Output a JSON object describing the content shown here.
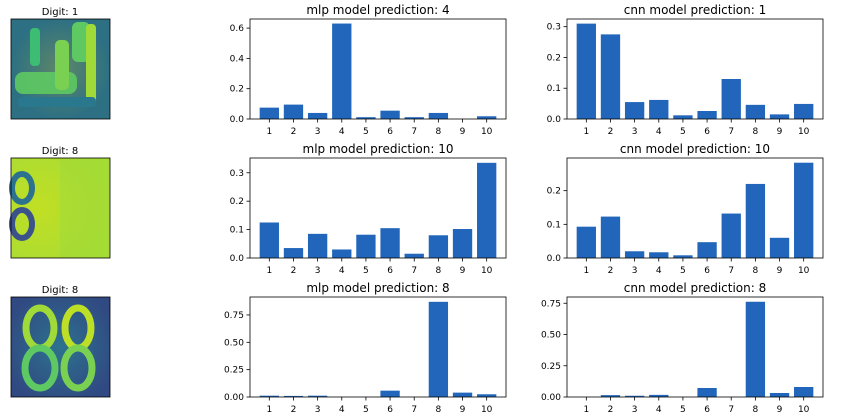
{
  "colors": {
    "bar": "#2266bb",
    "axis": "#000000",
    "background": "#ffffff"
  },
  "digits": [
    {
      "title": "Digit: 1",
      "icon": "digit-1-thumbnail"
    },
    {
      "title": "Digit: 8",
      "icon": "digit-8-thumbnail"
    },
    {
      "title": "Digit: 8",
      "icon": "digit-8-thumbnail"
    }
  ],
  "chart_data": [
    {
      "type": "bar",
      "title": "mlp model prediction: 4",
      "categories": [
        "1",
        "2",
        "3",
        "4",
        "5",
        "6",
        "7",
        "8",
        "9",
        "10"
      ],
      "values": [
        0.075,
        0.095,
        0.04,
        0.63,
        0.012,
        0.055,
        0.012,
        0.04,
        0.0,
        0.018
      ],
      "ylim": [
        0,
        0.66
      ],
      "yticks": [
        "0.0",
        "0.2",
        "0.4",
        "0.6"
      ],
      "ytick_values": [
        0,
        0.2,
        0.4,
        0.6
      ]
    },
    {
      "type": "bar",
      "title": "cnn model prediction: 1",
      "categories": [
        "1",
        "2",
        "3",
        "4",
        "5",
        "6",
        "7",
        "8",
        "9",
        "10"
      ],
      "values": [
        0.31,
        0.275,
        0.055,
        0.062,
        0.012,
        0.026,
        0.13,
        0.046,
        0.015,
        0.049
      ],
      "ylim": [
        0,
        0.325
      ],
      "yticks": [
        "0.0",
        "0.1",
        "0.2",
        "0.3"
      ],
      "ytick_values": [
        0,
        0.1,
        0.2,
        0.3
      ]
    },
    {
      "type": "bar",
      "title": "mlp model prediction: 10",
      "categories": [
        "1",
        "2",
        "3",
        "4",
        "5",
        "6",
        "7",
        "8",
        "9",
        "10"
      ],
      "values": [
        0.125,
        0.035,
        0.085,
        0.03,
        0.082,
        0.105,
        0.015,
        0.08,
        0.102,
        0.335
      ],
      "ylim": [
        0,
        0.352
      ],
      "yticks": [
        "0.0",
        "0.1",
        "0.2",
        "0.3"
      ],
      "ytick_values": [
        0,
        0.1,
        0.2,
        0.3
      ]
    },
    {
      "type": "bar",
      "title": "cnn model prediction: 10",
      "categories": [
        "1",
        "2",
        "3",
        "4",
        "5",
        "6",
        "7",
        "8",
        "9",
        "10"
      ],
      "values": [
        0.093,
        0.123,
        0.02,
        0.017,
        0.008,
        0.047,
        0.132,
        0.22,
        0.06,
        0.283
      ],
      "ylim": [
        0,
        0.297
      ],
      "yticks": [
        "0.0",
        "0.1",
        "0.2"
      ],
      "ytick_values": [
        0,
        0.1,
        0.2
      ]
    },
    {
      "type": "bar",
      "title": "mlp model prediction: 8",
      "categories": [
        "1",
        "2",
        "3",
        "4",
        "5",
        "6",
        "7",
        "8",
        "9",
        "10"
      ],
      "values": [
        0.012,
        0.01,
        0.012,
        0.0,
        0.0,
        0.058,
        0.0,
        0.87,
        0.04,
        0.025
      ],
      "ylim": [
        0,
        0.914
      ],
      "yticks": [
        "0.00",
        "0.25",
        "0.50",
        "0.75"
      ],
      "ytick_values": [
        0,
        0.25,
        0.5,
        0.75
      ]
    },
    {
      "type": "bar",
      "title": "cnn model prediction: 8",
      "categories": [
        "1",
        "2",
        "3",
        "4",
        "5",
        "6",
        "7",
        "8",
        "9",
        "10"
      ],
      "values": [
        0.0,
        0.015,
        0.01,
        0.017,
        0.0,
        0.072,
        0.0,
        0.762,
        0.032,
        0.08
      ],
      "ylim": [
        0,
        0.8
      ],
      "yticks": [
        "0.00",
        "0.25",
        "0.50",
        "0.75"
      ],
      "ytick_values": [
        0,
        0.25,
        0.5,
        0.75
      ]
    }
  ]
}
